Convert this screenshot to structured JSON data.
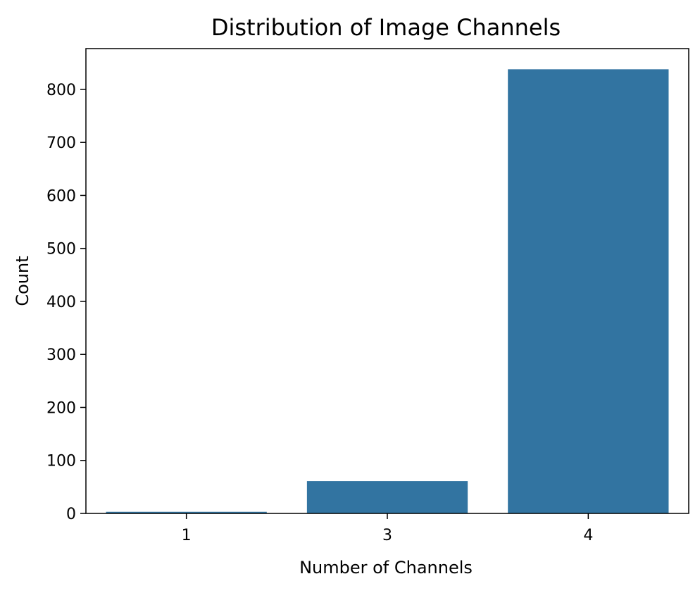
{
  "chart_data": {
    "type": "bar",
    "title": "Distribution of Image Channels",
    "xlabel": "Number of Channels",
    "ylabel": "Count",
    "categories": [
      "1",
      "3",
      "4"
    ],
    "values": [
      3,
      61,
      838
    ],
    "ylim": [
      0,
      877
    ],
    "yticks": [
      0,
      100,
      200,
      300,
      400,
      500,
      600,
      700,
      800
    ],
    "grid": false,
    "bar_color": "#3274a1",
    "axis_color": "#000000"
  }
}
